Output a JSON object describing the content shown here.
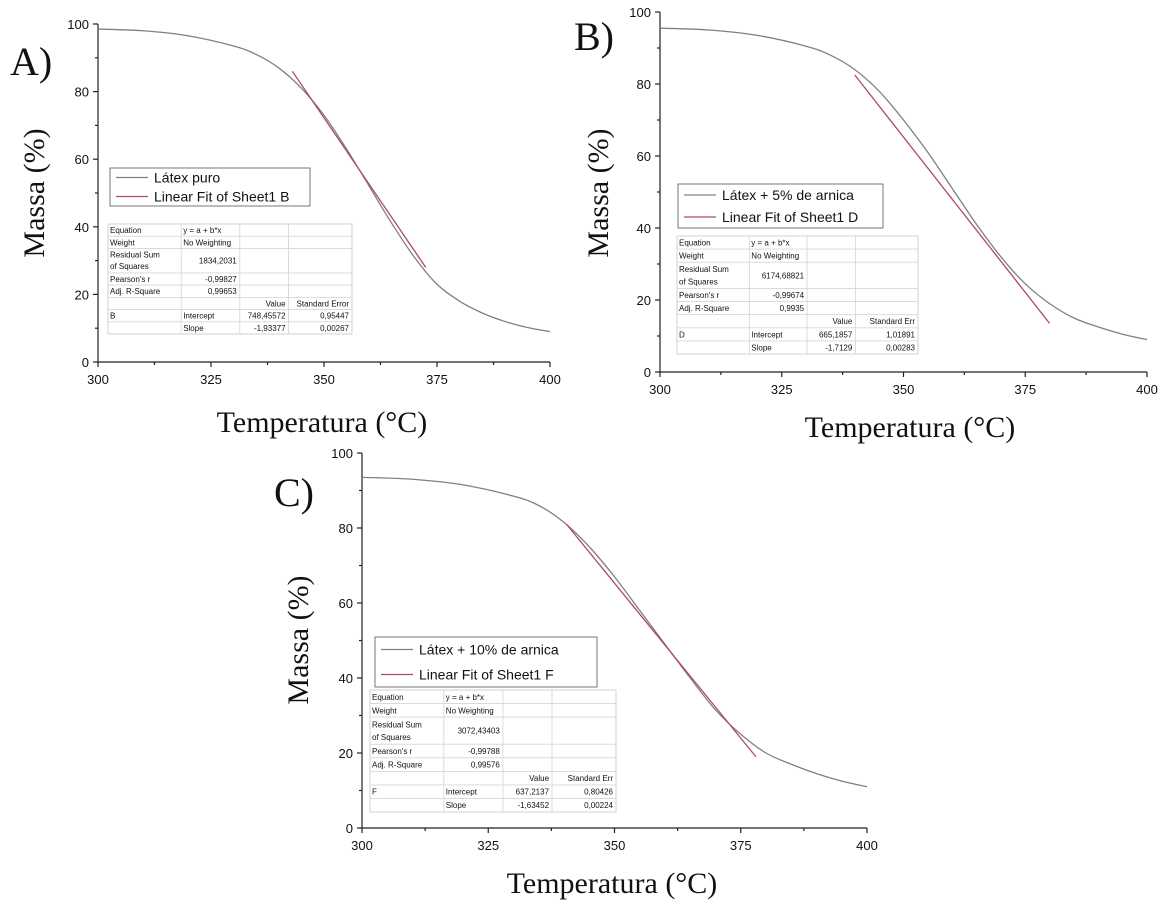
{
  "chart_data": [
    {
      "panel": "A)",
      "type": "line",
      "xlabel": "Temperatura (°C)",
      "ylabel": "Massa (%)",
      "xlim": [
        300,
        400
      ],
      "ylim": [
        0,
        100
      ],
      "xticks": [
        300,
        325,
        350,
        375,
        400
      ],
      "yticks": [
        0,
        20,
        40,
        60,
        80,
        100
      ],
      "legend": [
        "Látex puro",
        "Linear Fit of Sheet1 B"
      ],
      "legend_position": "middle-left",
      "series": [
        {
          "name": "Látex puro",
          "color": "#808080",
          "kind": "curve",
          "x": [
            300,
            310,
            320,
            330,
            335,
            340,
            345,
            350,
            355,
            360,
            365,
            370,
            375,
            380,
            385,
            390,
            395,
            400
          ],
          "y": [
            98.5,
            98,
            96.5,
            93.5,
            91,
            87,
            81,
            73,
            63,
            52,
            41,
            31,
            23,
            18,
            14.5,
            12,
            10.2,
            9
          ]
        },
        {
          "name": "Linear Fit of Sheet1 B",
          "color": "#b04a5a",
          "kind": "line",
          "x": [
            343,
            372.5
          ],
          "y": [
            86,
            28
          ]
        }
      ],
      "fit_table": {
        "rows": [
          [
            "Equation",
            "y = a + b*x",
            "",
            ""
          ],
          [
            "Weight",
            "No Weighting",
            "",
            ""
          ],
          [
            "Residual Sum of Squares",
            "1834,2031",
            "",
            ""
          ],
          [
            "Pearson's r",
            "-0,99827",
            "",
            ""
          ],
          [
            "Adj. R-Square",
            "0,99653",
            "",
            ""
          ],
          [
            "",
            "",
            "Value",
            "Standard Error"
          ],
          [
            "B",
            "Intercept",
            "748,45572",
            "0,95447"
          ],
          [
            "",
            "Slope",
            "-1,93377",
            "0,00267"
          ]
        ]
      }
    },
    {
      "panel": "B)",
      "type": "line",
      "xlabel": "Temperatura (°C)",
      "ylabel": "Massa (%)",
      "xlim": [
        300,
        400
      ],
      "ylim": [
        0,
        100
      ],
      "xticks": [
        300,
        325,
        350,
        375,
        400
      ],
      "yticks": [
        0,
        20,
        40,
        60,
        80,
        100
      ],
      "legend": [
        "Látex + 5% de arnica",
        "Linear Fit of Sheet1 D"
      ],
      "legend_position": "middle-left",
      "series": [
        {
          "name": "Látex + 5% de arnica",
          "color": "#808080",
          "kind": "curve",
          "x": [
            300,
            310,
            320,
            330,
            335,
            340,
            345,
            350,
            355,
            360,
            365,
            370,
            375,
            380,
            385,
            390,
            395,
            400
          ],
          "y": [
            95.5,
            95,
            93.5,
            90.5,
            88,
            84,
            78,
            70,
            61,
            51,
            41,
            32,
            24.5,
            19,
            15,
            12.5,
            10.5,
            9
          ]
        },
        {
          "name": "Linear Fit of Sheet1 D",
          "color": "#b04a5a",
          "kind": "line",
          "x": [
            340,
            380
          ],
          "y": [
            82.5,
            13.5
          ]
        }
      ],
      "fit_table": {
        "rows": [
          [
            "Equation",
            "y = a + b*x",
            "",
            ""
          ],
          [
            "Weight",
            "No Weighting",
            "",
            ""
          ],
          [
            "Residual Sum of Squares",
            "6174,68821",
            "",
            ""
          ],
          [
            "Pearson's r",
            "-0,99674",
            "",
            ""
          ],
          [
            "Adj. R-Square",
            "0,9935",
            "",
            ""
          ],
          [
            "",
            "",
            "Value",
            "Standard Err"
          ],
          [
            "D",
            "Intercept",
            "665,1857",
            "1,01891"
          ],
          [
            "",
            "Slope",
            "-1,7129",
            "0,00283"
          ]
        ]
      }
    },
    {
      "panel": "C)",
      "type": "line",
      "xlabel": "Temperatura (°C)",
      "ylabel": "Massa (%)",
      "xlim": [
        300,
        400
      ],
      "ylim": [
        0,
        100
      ],
      "xticks": [
        300,
        325,
        350,
        375,
        400
      ],
      "yticks": [
        0,
        20,
        40,
        60,
        80,
        100
      ],
      "legend": [
        "Látex + 10% de arnica",
        "Linear Fit of Sheet1 F"
      ],
      "legend_position": "middle-left",
      "series": [
        {
          "name": "Látex + 10% de arnica",
          "color": "#808080",
          "kind": "curve",
          "x": [
            300,
            310,
            320,
            330,
            335,
            340,
            345,
            350,
            355,
            360,
            365,
            370,
            375,
            380,
            385,
            390,
            395,
            400
          ],
          "y": [
            93.5,
            93,
            91.5,
            88.5,
            86,
            81.5,
            75,
            67,
            58,
            49,
            40,
            31.5,
            25,
            20,
            17,
            14.5,
            12.5,
            11
          ]
        },
        {
          "name": "Linear Fit of Sheet1 F",
          "color": "#b04a5a",
          "kind": "line",
          "x": [
            340.5,
            378
          ],
          "y": [
            81,
            19
          ]
        }
      ],
      "fit_table": {
        "rows": [
          [
            "Equation",
            "y = a + b*x",
            "",
            ""
          ],
          [
            "Weight",
            "No Weighting",
            "",
            ""
          ],
          [
            "Residual Sum of Squares",
            "3072,43403",
            "",
            ""
          ],
          [
            "Pearson's r",
            "-0,99788",
            "",
            ""
          ],
          [
            "Adj. R-Square",
            "0,99576",
            "",
            ""
          ],
          [
            "",
            "",
            "Value",
            "Standard Err"
          ],
          [
            "F",
            "Intercept",
            "637,2137",
            "0,80426"
          ],
          [
            "",
            "Slope",
            "-1,63452",
            "0,00224"
          ]
        ]
      }
    }
  ]
}
